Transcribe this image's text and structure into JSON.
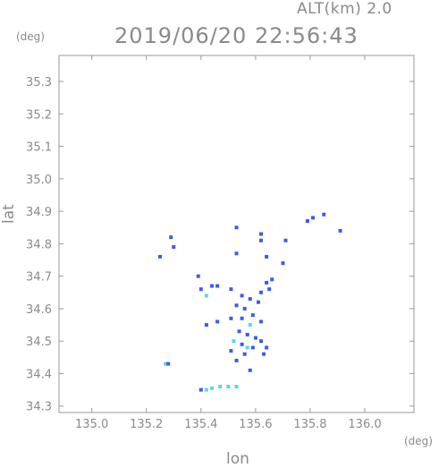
{
  "header": {
    "altitude": "ALT(km) 2.0",
    "timestamp": "2019/06/20 22:56:43"
  },
  "chart_data": {
    "type": "scatter",
    "title": "2019/06/20 22:56:43",
    "subtitle": "ALT(km) 2.0",
    "xlabel": "lon",
    "ylabel": "lat",
    "xunit": "(deg)",
    "yunit": "(deg)",
    "xlim": [
      134.88,
      136.18
    ],
    "ylim": [
      34.28,
      35.38
    ],
    "x_ticks": [
      135.0,
      135.2,
      135.4,
      135.6,
      135.8,
      136.0
    ],
    "x_tick_labels": [
      "135.0",
      "135.2",
      "135.4",
      "135.6",
      "135.8",
      "136.0"
    ],
    "y_ticks": [
      34.3,
      34.4,
      34.5,
      34.6,
      34.7,
      34.8,
      34.9,
      35.0,
      35.1,
      35.2,
      35.3
    ],
    "y_tick_labels": [
      "34.3",
      "34.4",
      "34.5",
      "34.6",
      "34.7",
      "34.8",
      "34.9",
      "35.0",
      "35.1",
      "35.2",
      "35.3"
    ],
    "grid": false,
    "colors": {
      "low": "#3d5af0",
      "high": "#5ad7e8",
      "axis": "#999999"
    },
    "series": [
      {
        "values": [
          {
            "x": 135.25,
            "y": 34.76,
            "level": "low"
          },
          {
            "x": 135.29,
            "y": 34.82,
            "level": "low"
          },
          {
            "x": 135.3,
            "y": 34.79,
            "level": "low"
          },
          {
            "x": 135.53,
            "y": 34.85,
            "level": "low"
          },
          {
            "x": 135.62,
            "y": 34.83,
            "level": "low"
          },
          {
            "x": 135.62,
            "y": 34.81,
            "level": "low"
          },
          {
            "x": 135.71,
            "y": 34.81,
            "level": "low"
          },
          {
            "x": 135.79,
            "y": 34.87,
            "level": "low"
          },
          {
            "x": 135.81,
            "y": 34.88,
            "level": "low"
          },
          {
            "x": 135.85,
            "y": 34.89,
            "level": "low"
          },
          {
            "x": 135.91,
            "y": 34.84,
            "level": "low"
          },
          {
            "x": 135.53,
            "y": 34.77,
            "level": "low"
          },
          {
            "x": 135.64,
            "y": 34.76,
            "level": "low"
          },
          {
            "x": 135.7,
            "y": 34.74,
            "level": "low"
          },
          {
            "x": 135.39,
            "y": 34.7,
            "level": "low"
          },
          {
            "x": 135.4,
            "y": 34.66,
            "level": "low"
          },
          {
            "x": 135.42,
            "y": 34.64,
            "level": "high"
          },
          {
            "x": 135.44,
            "y": 34.67,
            "level": "low"
          },
          {
            "x": 135.46,
            "y": 34.67,
            "level": "low"
          },
          {
            "x": 135.51,
            "y": 34.66,
            "level": "low"
          },
          {
            "x": 135.55,
            "y": 34.64,
            "level": "low"
          },
          {
            "x": 135.58,
            "y": 34.63,
            "level": "low"
          },
          {
            "x": 135.62,
            "y": 34.65,
            "level": "low"
          },
          {
            "x": 135.64,
            "y": 34.68,
            "level": "low"
          },
          {
            "x": 135.66,
            "y": 34.69,
            "level": "low"
          },
          {
            "x": 135.65,
            "y": 34.66,
            "level": "low"
          },
          {
            "x": 135.61,
            "y": 34.62,
            "level": "low"
          },
          {
            "x": 135.53,
            "y": 34.61,
            "level": "low"
          },
          {
            "x": 135.56,
            "y": 34.6,
            "level": "low"
          },
          {
            "x": 135.59,
            "y": 34.58,
            "level": "low"
          },
          {
            "x": 135.51,
            "y": 34.57,
            "level": "low"
          },
          {
            "x": 135.55,
            "y": 34.57,
            "level": "low"
          },
          {
            "x": 135.58,
            "y": 34.55,
            "level": "high"
          },
          {
            "x": 135.62,
            "y": 34.56,
            "level": "low"
          },
          {
            "x": 135.54,
            "y": 34.53,
            "level": "low"
          },
          {
            "x": 135.57,
            "y": 34.52,
            "level": "low"
          },
          {
            "x": 135.6,
            "y": 34.51,
            "level": "low"
          },
          {
            "x": 135.52,
            "y": 34.5,
            "level": "high"
          },
          {
            "x": 135.55,
            "y": 34.49,
            "level": "low"
          },
          {
            "x": 135.57,
            "y": 34.48,
            "level": "high"
          },
          {
            "x": 135.59,
            "y": 34.48,
            "level": "low"
          },
          {
            "x": 135.62,
            "y": 34.5,
            "level": "low"
          },
          {
            "x": 135.64,
            "y": 34.48,
            "level": "low"
          },
          {
            "x": 135.51,
            "y": 34.47,
            "level": "low"
          },
          {
            "x": 135.56,
            "y": 34.46,
            "level": "low"
          },
          {
            "x": 135.63,
            "y": 34.46,
            "level": "low"
          },
          {
            "x": 135.53,
            "y": 34.44,
            "level": "low"
          },
          {
            "x": 135.58,
            "y": 34.41,
            "level": "low"
          },
          {
            "x": 135.46,
            "y": 34.56,
            "level": "low"
          },
          {
            "x": 135.42,
            "y": 34.55,
            "level": "low"
          },
          {
            "x": 135.27,
            "y": 34.43,
            "level": "high"
          },
          {
            "x": 135.28,
            "y": 34.43,
            "level": "low"
          },
          {
            "x": 135.4,
            "y": 34.35,
            "level": "low"
          },
          {
            "x": 135.42,
            "y": 34.35,
            "level": "high"
          },
          {
            "x": 135.44,
            "y": 34.355,
            "level": "high"
          },
          {
            "x": 135.47,
            "y": 34.36,
            "level": "high"
          },
          {
            "x": 135.5,
            "y": 34.36,
            "level": "high"
          },
          {
            "x": 135.53,
            "y": 34.36,
            "level": "high"
          }
        ]
      }
    ]
  }
}
